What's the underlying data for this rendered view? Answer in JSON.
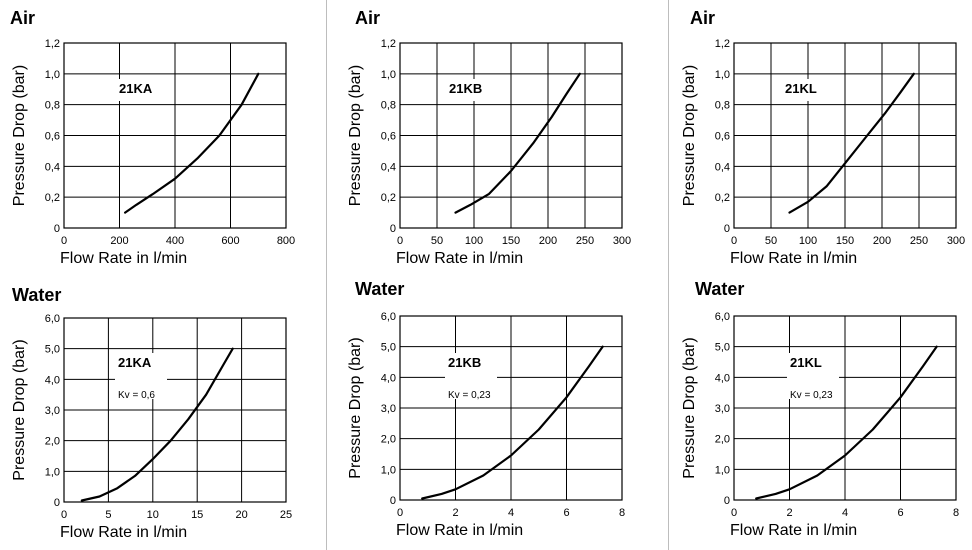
{
  "sections": {
    "air_title": "Air",
    "water_title": "Water"
  },
  "chart_data": [
    {
      "type": "line",
      "group": "Air",
      "model_label": "21KA",
      "xlabel": "Flow Rate in l/min",
      "ylabel": "Pressure Drop (bar)",
      "xlim": [
        0,
        800
      ],
      "ylim": [
        0,
        1.2
      ],
      "xticks": [
        "0",
        "200",
        "400",
        "600",
        "800"
      ],
      "yticks": [
        "0",
        "0,2",
        "0,4",
        "0,6",
        "0,8",
        "1,0",
        "1,2"
      ],
      "grid": true,
      "series": [
        {
          "x": [
            220,
            260,
            320,
            400,
            480,
            560,
            640,
            700
          ],
          "y": [
            0.1,
            0.15,
            0.22,
            0.32,
            0.45,
            0.6,
            0.8,
            1.0
          ]
        }
      ]
    },
    {
      "type": "line",
      "group": "Air",
      "model_label": "21KB",
      "xlabel": "Flow Rate in l/min",
      "ylabel": "Pressure Drop (bar)",
      "xlim": [
        0,
        300
      ],
      "ylim": [
        0,
        1.2
      ],
      "xticks": [
        "0",
        "50",
        "100",
        "150",
        "200",
        "250",
        "300"
      ],
      "yticks": [
        "0",
        "0,2",
        "0,4",
        "0,6",
        "0,8",
        "1,0",
        "1,2"
      ],
      "grid": true,
      "series": [
        {
          "x": [
            75,
            95,
            120,
            150,
            180,
            205,
            225,
            243
          ],
          "y": [
            0.1,
            0.15,
            0.22,
            0.37,
            0.55,
            0.72,
            0.87,
            1.0
          ]
        }
      ]
    },
    {
      "type": "line",
      "group": "Air",
      "model_label": "21KL",
      "xlabel": "Flow Rate in l/min",
      "ylabel": "Pressure Drop (bar)",
      "xlim": [
        0,
        300
      ],
      "ylim": [
        0,
        1.2
      ],
      "xticks": [
        "0",
        "50",
        "100",
        "150",
        "200",
        "250",
        "300"
      ],
      "yticks": [
        "0",
        "0,2",
        "0,4",
        "0,6",
        "0,8",
        "1,0",
        "1,2"
      ],
      "grid": true,
      "series": [
        {
          "x": [
            75,
            100,
            125,
            150,
            180,
            205,
            225,
            243
          ],
          "y": [
            0.1,
            0.17,
            0.27,
            0.42,
            0.6,
            0.75,
            0.88,
            1.0
          ]
        }
      ]
    },
    {
      "type": "line",
      "group": "Water",
      "model_label": "21KA",
      "kv_label": "Kv = 0,6",
      "xlabel": "Flow Rate in l/min",
      "ylabel": "Pressure Drop (bar)",
      "xlim": [
        0,
        25
      ],
      "ylim": [
        0,
        6
      ],
      "xticks": [
        "0",
        "5",
        "10",
        "15",
        "20",
        "25"
      ],
      "yticks": [
        "0",
        "1,0",
        "2,0",
        "3,0",
        "4,0",
        "5,0",
        "6,0"
      ],
      "grid": true,
      "series": [
        {
          "x": [
            2,
            4,
            6,
            8,
            10,
            12,
            14,
            16,
            18,
            19
          ],
          "y": [
            0.05,
            0.18,
            0.45,
            0.85,
            1.4,
            2.0,
            2.7,
            3.5,
            4.5,
            5.0
          ]
        }
      ]
    },
    {
      "type": "line",
      "group": "Water",
      "model_label": "21KB",
      "kv_label": "Kv = 0,23",
      "xlabel": "Flow Rate in l/min",
      "ylabel": "Pressure Drop (bar)",
      "xlim": [
        0,
        8
      ],
      "ylim": [
        0,
        6
      ],
      "xticks": [
        "0",
        "2",
        "4",
        "6",
        "8"
      ],
      "yticks": [
        "0",
        "1,0",
        "2,0",
        "3,0",
        "4,0",
        "5,0",
        "6,0"
      ],
      "grid": true,
      "series": [
        {
          "x": [
            0.8,
            1.5,
            2.0,
            3.0,
            4.0,
            5.0,
            6.0,
            6.8,
            7.3
          ],
          "y": [
            0.05,
            0.2,
            0.35,
            0.8,
            1.45,
            2.3,
            3.35,
            4.35,
            5.0
          ]
        }
      ]
    },
    {
      "type": "line",
      "group": "Water",
      "model_label": "21KL",
      "kv_label": "Kv = 0,23",
      "xlabel": "Flow Rate in l/min",
      "ylabel": "Pressure Drop (bar)",
      "xlim": [
        0,
        8
      ],
      "ylim": [
        0,
        6
      ],
      "xticks": [
        "0",
        "2",
        "4",
        "6",
        "8"
      ],
      "yticks": [
        "0",
        "1,0",
        "2,0",
        "3,0",
        "4,0",
        "5,0",
        "6,0"
      ],
      "grid": true,
      "series": [
        {
          "x": [
            0.8,
            1.5,
            2.0,
            3.0,
            4.0,
            5.0,
            6.0,
            6.8,
            7.3
          ],
          "y": [
            0.05,
            0.2,
            0.35,
            0.8,
            1.45,
            2.3,
            3.35,
            4.35,
            5.0
          ]
        }
      ]
    }
  ]
}
